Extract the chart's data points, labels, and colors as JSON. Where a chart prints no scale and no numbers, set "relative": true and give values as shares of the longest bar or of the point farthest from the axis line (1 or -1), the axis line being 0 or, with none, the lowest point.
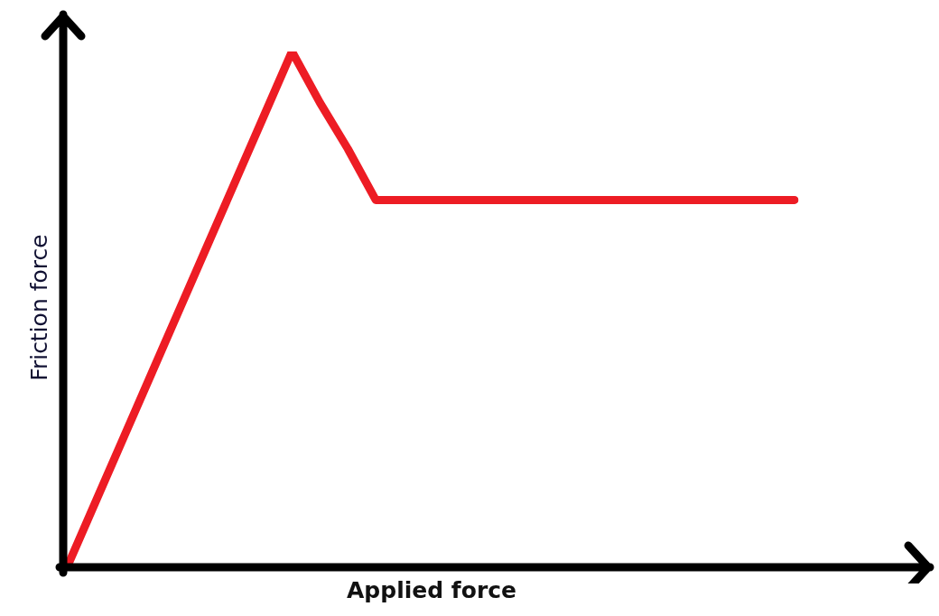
{
  "chart_data": {
    "type": "line",
    "xlabel": "Applied force",
    "ylabel": "Friction force",
    "relative": true,
    "tick_labels": false,
    "marker": "none",
    "categories": [
      null,
      null,
      null,
      null,
      null,
      null,
      null,
      null,
      null,
      null,
      null,
      null,
      null,
      null,
      null,
      null,
      null,
      null,
      null,
      null,
      null,
      null,
      null,
      null,
      null,
      null,
      null
    ],
    "series": [
      {
        "color": "#ed1c24",
        "values": [
          0,
          0.125,
          0.25,
          0.375,
          0.5,
          0.625,
          0.75,
          0.875,
          1,
          0.9,
          0.81,
          0.71,
          0.71,
          0.71,
          0.71,
          0.71,
          0.71,
          0.71,
          0.71,
          0.71,
          0.71,
          0.71,
          0.71,
          0.71,
          0.71,
          0.71,
          0.71
        ]
      }
    ]
  }
}
